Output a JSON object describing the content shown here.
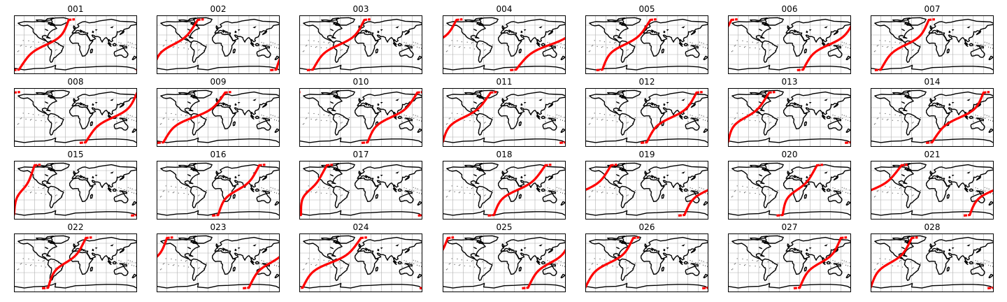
{
  "figure": {
    "layout": {
      "rows": 4,
      "columns": 7
    },
    "colors": {
      "land": "#000000",
      "track": "#ff0000",
      "gridlines": "#b0b0b0",
      "frame": "#000000",
      "background": "#ffffff"
    },
    "map_projection": "equirectangular world map with graticule",
    "panels": [
      {
        "label": "001",
        "track": {
          "start_lon": -165,
          "cross_lon": -70,
          "end_lon": -20
        }
      },
      {
        "label": "002",
        "track": {
          "start_lon": 170,
          "cross_lon": 210,
          "end_lon": 300
        }
      },
      {
        "label": "003",
        "track": {
          "start_lon": -140,
          "cross_lon": -60,
          "end_lon": 10
        }
      },
      {
        "label": "004",
        "track": {
          "start_lon": 35,
          "cross_lon": 150,
          "end_lon": 220
        }
      },
      {
        "label": "005",
        "track": {
          "start_lon": -130,
          "cross_lon": -80,
          "end_lon": 10
        }
      },
      {
        "label": "006",
        "track": {
          "start_lon": 40,
          "cross_lon": 115,
          "end_lon": 190
        }
      },
      {
        "label": "007",
        "track": {
          "start_lon": -150,
          "cross_lon": -70,
          "end_lon": -10
        }
      },
      {
        "label": "008",
        "track": {
          "start_lon": 30,
          "cross_lon": 120,
          "end_lon": 180
        }
      },
      {
        "label": "009",
        "track": {
          "start_lon": -160,
          "cross_lon": -80,
          "end_lon": 20
        }
      },
      {
        "label": "010",
        "track": {
          "start_lon": 20,
          "cross_lon": 75,
          "end_lon": 165
        }
      },
      {
        "label": "011",
        "track": {
          "start_lon": -180,
          "cross_lon": -140,
          "end_lon": -40
        }
      },
      {
        "label": "012",
        "track": {
          "start_lon": 0,
          "cross_lon": 70,
          "end_lon": 145
        }
      },
      {
        "label": "013",
        "track": {
          "start_lon": -180,
          "cross_lon": -150,
          "end_lon": -60
        }
      },
      {
        "label": "014",
        "track": {
          "start_lon": 0,
          "cross_lon": 95,
          "end_lon": 150
        }
      },
      {
        "label": "015",
        "track": {
          "start_lon": -180,
          "cross_lon": -170,
          "end_lon": -120
        }
      },
      {
        "label": "016",
        "track": {
          "start_lon": 0,
          "cross_lon": 45,
          "end_lon": 120
        }
      },
      {
        "label": "017",
        "track": {
          "start_lon": -175,
          "cross_lon": -180,
          "end_lon": -100
        }
      },
      {
        "label": "018",
        "track": {
          "start_lon": -30,
          "cross_lon": 20,
          "end_lon": 120
        }
      },
      {
        "label": "019",
        "track": {
          "start_lon": 110,
          "cross_lon": 170,
          "end_lon": 255
        }
      },
      {
        "label": "020",
        "track": {
          "start_lon": -20,
          "cross_lon": 0,
          "end_lon": 80
        }
      },
      {
        "label": "021",
        "track": {
          "start_lon": 110,
          "cross_lon": 160,
          "end_lon": 270
        }
      },
      {
        "label": "022",
        "track": {
          "start_lon": -80,
          "cross_lon": -40,
          "end_lon": 30
        }
      },
      {
        "label": "023",
        "track": {
          "start_lon": 90,
          "cross_lon": 160,
          "end_lon": 210
        }
      },
      {
        "label": "024",
        "track": {
          "start_lon": -170,
          "cross_lon": -100,
          "end_lon": 0
        }
      },
      {
        "label": "025",
        "track": {
          "start_lon": 70,
          "cross_lon": 140,
          "end_lon": 195
        }
      },
      {
        "label": "026",
        "track": {
          "start_lon": -180,
          "cross_lon": -110,
          "end_lon": -40
        }
      },
      {
        "label": "027",
        "track": {
          "start_lon": 30,
          "cross_lon": 90,
          "end_lon": 150
        }
      },
      {
        "label": "028",
        "track": {
          "start_lon": -180,
          "cross_lon": -130,
          "end_lon": -60
        }
      }
    ]
  }
}
